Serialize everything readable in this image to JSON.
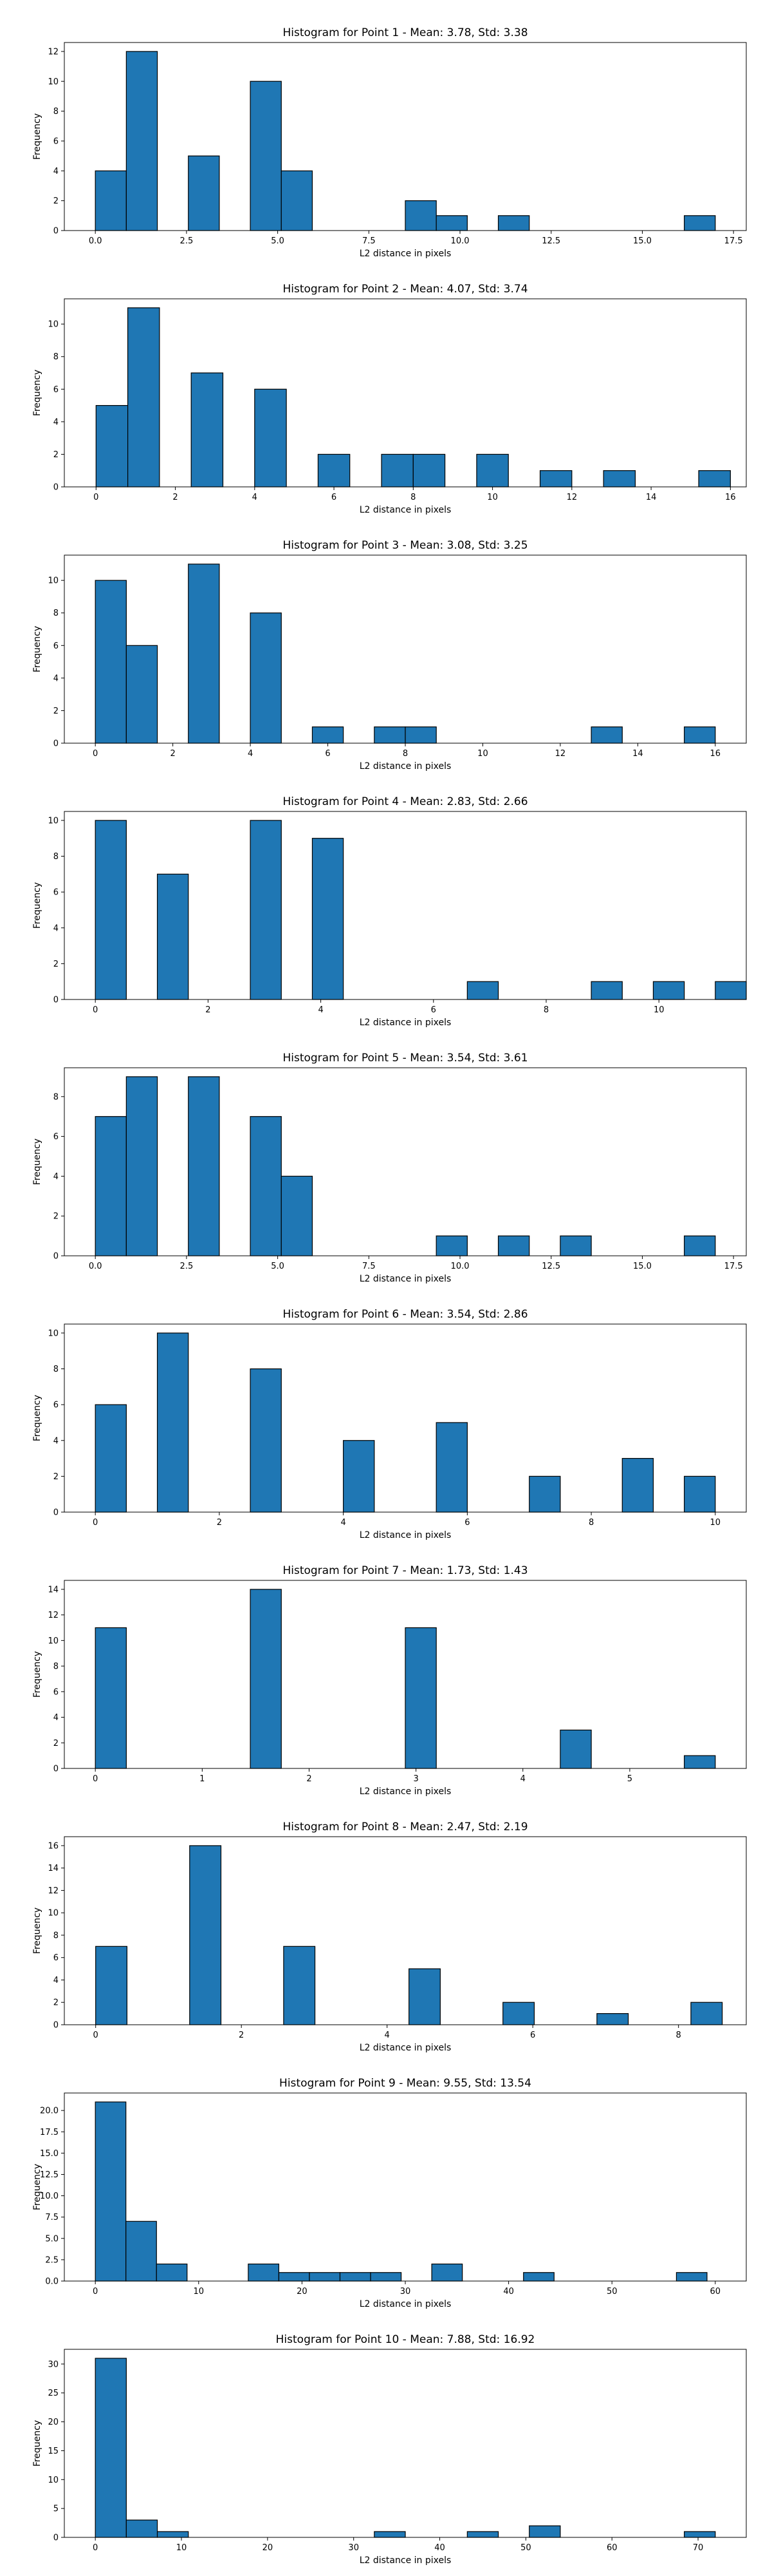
{
  "figure": {
    "background": "#ffffff",
    "bar_color": "#1f77b4",
    "edge_color": "#000000"
  },
  "chart_data": [
    {
      "type": "bar",
      "title": "Histogram for Point 1 - Mean: 3.78, Std: 3.38",
      "xlabel": "L2 distance in pixels",
      "ylabel": "Frequency",
      "xlim": [
        -0.85,
        17.85
      ],
      "ylim": [
        0,
        12.6
      ],
      "xticks": [
        0.0,
        2.5,
        5.0,
        7.5,
        10.0,
        12.5,
        15.0,
        17.5
      ],
      "xtick_labels": [
        "0.0",
        "2.5",
        "5.0",
        "7.5",
        "10.0",
        "12.5",
        "15.0",
        "17.5"
      ],
      "yticks": [
        0,
        2,
        4,
        6,
        8,
        10,
        12
      ],
      "ytick_labels": [
        "0",
        "2",
        "4",
        "6",
        "8",
        "10",
        "12"
      ],
      "bin_width": 0.85,
      "bins": [
        {
          "x": 0.0,
          "count": 4
        },
        {
          "x": 0.85,
          "count": 12
        },
        {
          "x": 2.55,
          "count": 5
        },
        {
          "x": 4.25,
          "count": 10
        },
        {
          "x": 5.1,
          "count": 4
        },
        {
          "x": 8.5,
          "count": 2
        },
        {
          "x": 9.35,
          "count": 1
        },
        {
          "x": 11.05,
          "count": 1
        },
        {
          "x": 16.15,
          "count": 1
        }
      ]
    },
    {
      "type": "bar",
      "title": "Histogram for Point 2 - Mean: 4.07, Std: 3.74",
      "xlabel": "L2 distance in pixels",
      "ylabel": "Frequency",
      "xlim": [
        -0.8,
        16.4
      ],
      "ylim": [
        0,
        11.55
      ],
      "xticks": [
        0,
        2,
        4,
        6,
        8,
        10,
        12,
        14,
        16
      ],
      "xtick_labels": [
        "0",
        "2",
        "4",
        "6",
        "8",
        "10",
        "12",
        "14",
        "16"
      ],
      "yticks": [
        0,
        2,
        4,
        6,
        8,
        10
      ],
      "ytick_labels": [
        "0",
        "2",
        "4",
        "6",
        "8",
        "10"
      ],
      "bin_width": 0.8,
      "bins": [
        {
          "x": 0.0,
          "count": 5
        },
        {
          "x": 0.8,
          "count": 11
        },
        {
          "x": 2.4,
          "count": 7
        },
        {
          "x": 4.0,
          "count": 6
        },
        {
          "x": 5.6,
          "count": 2
        },
        {
          "x": 7.2,
          "count": 2
        },
        {
          "x": 8.0,
          "count": 2
        },
        {
          "x": 9.6,
          "count": 2
        },
        {
          "x": 11.2,
          "count": 1
        },
        {
          "x": 12.8,
          "count": 1
        },
        {
          "x": 15.2,
          "count": 1
        }
      ]
    },
    {
      "type": "bar",
      "title": "Histogram for Point 3 - Mean: 3.08, Std: 3.25",
      "xlabel": "L2 distance in pixels",
      "ylabel": "Frequency",
      "xlim": [
        -0.8,
        16.8
      ],
      "ylim": [
        0,
        11.55
      ],
      "xticks": [
        0,
        2,
        4,
        6,
        8,
        10,
        12,
        14,
        16
      ],
      "xtick_labels": [
        "0",
        "2",
        "4",
        "6",
        "8",
        "10",
        "12",
        "14",
        "16"
      ],
      "yticks": [
        0,
        2,
        4,
        6,
        8,
        10
      ],
      "ytick_labels": [
        "0",
        "2",
        "4",
        "6",
        "8",
        "10"
      ],
      "bin_width": 0.8,
      "bins": [
        {
          "x": 0.0,
          "count": 10
        },
        {
          "x": 0.8,
          "count": 6
        },
        {
          "x": 2.4,
          "count": 11
        },
        {
          "x": 4.0,
          "count": 8
        },
        {
          "x": 5.6,
          "count": 1
        },
        {
          "x": 7.2,
          "count": 1
        },
        {
          "x": 8.0,
          "count": 1
        },
        {
          "x": 12.8,
          "count": 1
        },
        {
          "x": 15.2,
          "count": 1
        }
      ]
    },
    {
      "type": "bar",
      "title": "Histogram for Point 4 - Mean: 2.83, Std: 2.66",
      "xlabel": "L2 distance in pixels",
      "ylabel": "Frequency",
      "xlim": [
        -0.55,
        11.55
      ],
      "ylim": [
        0,
        10.5
      ],
      "xticks": [
        0,
        2,
        4,
        6,
        8,
        10
      ],
      "xtick_labels": [
        "0",
        "2",
        "4",
        "6",
        "8",
        "10"
      ],
      "yticks": [
        0,
        2,
        4,
        6,
        8,
        10
      ],
      "ytick_labels": [
        "0",
        "2",
        "4",
        "6",
        "8",
        "10"
      ],
      "bin_width": 0.55,
      "bins": [
        {
          "x": 0.0,
          "count": 10
        },
        {
          "x": 1.1,
          "count": 7
        },
        {
          "x": 2.75,
          "count": 10
        },
        {
          "x": 3.85,
          "count": 9
        },
        {
          "x": 6.6,
          "count": 1
        },
        {
          "x": 8.8,
          "count": 1
        },
        {
          "x": 9.9,
          "count": 1
        },
        {
          "x": 11.0,
          "count": 1
        }
      ]
    },
    {
      "type": "bar",
      "title": "Histogram for Point 5 - Mean: 3.54, Std: 3.61",
      "xlabel": "L2 distance in pixels",
      "ylabel": "Frequency",
      "xlim": [
        -0.85,
        17.85
      ],
      "ylim": [
        0,
        9.45
      ],
      "xticks": [
        0.0,
        2.5,
        5.0,
        7.5,
        10.0,
        12.5,
        15.0,
        17.5
      ],
      "xtick_labels": [
        "0.0",
        "2.5",
        "5.0",
        "7.5",
        "10.0",
        "12.5",
        "15.0",
        "17.5"
      ],
      "yticks": [
        0,
        2,
        4,
        6,
        8
      ],
      "ytick_labels": [
        "0",
        "2",
        "4",
        "6",
        "8"
      ],
      "bin_width": 0.85,
      "bins": [
        {
          "x": 0.0,
          "count": 7
        },
        {
          "x": 0.85,
          "count": 9
        },
        {
          "x": 2.55,
          "count": 9
        },
        {
          "x": 4.25,
          "count": 7
        },
        {
          "x": 5.1,
          "count": 4
        },
        {
          "x": 9.35,
          "count": 1
        },
        {
          "x": 11.05,
          "count": 1
        },
        {
          "x": 12.75,
          "count": 1
        },
        {
          "x": 16.15,
          "count": 1
        }
      ]
    },
    {
      "type": "bar",
      "title": "Histogram for Point 6 - Mean: 3.54, Std: 2.86",
      "xlabel": "L2 distance in pixels",
      "ylabel": "Frequency",
      "xlim": [
        -0.5,
        10.5
      ],
      "ylim": [
        0,
        10.5
      ],
      "xticks": [
        0,
        2,
        4,
        6,
        8,
        10
      ],
      "xtick_labels": [
        "0",
        "2",
        "4",
        "6",
        "8",
        "10"
      ],
      "yticks": [
        0,
        2,
        4,
        6,
        8,
        10
      ],
      "ytick_labels": [
        "0",
        "2",
        "4",
        "6",
        "8",
        "10"
      ],
      "bin_width": 0.5,
      "bins": [
        {
          "x": 0.0,
          "count": 6
        },
        {
          "x": 1.0,
          "count": 10
        },
        {
          "x": 2.5,
          "count": 8
        },
        {
          "x": 4.0,
          "count": 4
        },
        {
          "x": 5.5,
          "count": 5
        },
        {
          "x": 7.0,
          "count": 2
        },
        {
          "x": 8.5,
          "count": 3
        },
        {
          "x": 9.5,
          "count": 2
        }
      ]
    },
    {
      "type": "bar",
      "title": "Histogram for Point 7 - Mean: 1.73, Std: 1.43",
      "xlabel": "L2 distance in pixels",
      "ylabel": "Frequency",
      "xlim": [
        -0.29,
        6.09
      ],
      "ylim": [
        0,
        14.7
      ],
      "xticks": [
        0,
        1,
        2,
        3,
        4,
        5
      ],
      "xtick_labels": [
        "0",
        "1",
        "2",
        "3",
        "4",
        "5"
      ],
      "yticks": [
        0,
        2,
        4,
        6,
        8,
        10,
        12,
        14
      ],
      "ytick_labels": [
        "0",
        "2",
        "4",
        "6",
        "8",
        "10",
        "12",
        "14"
      ],
      "bin_width": 0.29,
      "bins": [
        {
          "x": 0.0,
          "count": 11
        },
        {
          "x": 1.45,
          "count": 14
        },
        {
          "x": 2.9,
          "count": 11
        },
        {
          "x": 4.35,
          "count": 3
        },
        {
          "x": 5.51,
          "count": 1
        }
      ]
    },
    {
      "type": "bar",
      "title": "Histogram for Point 8 - Mean: 2.47, Std: 2.19",
      "xlabel": "L2 distance in pixels",
      "ylabel": "Frequency",
      "xlim": [
        -0.43,
        8.93
      ],
      "ylim": [
        0,
        16.8
      ],
      "xticks": [
        0,
        2,
        4,
        6,
        8
      ],
      "xtick_labels": [
        "0",
        "2",
        "4",
        "6",
        "8"
      ],
      "yticks": [
        0,
        2,
        4,
        6,
        8,
        10,
        12,
        14,
        16
      ],
      "ytick_labels": [
        "0",
        "2",
        "4",
        "6",
        "8",
        "10",
        "12",
        "14",
        "16"
      ],
      "bin_width": 0.43,
      "bins": [
        {
          "x": 0.0,
          "count": 7
        },
        {
          "x": 1.29,
          "count": 16
        },
        {
          "x": 2.58,
          "count": 7
        },
        {
          "x": 4.3,
          "count": 5
        },
        {
          "x": 5.59,
          "count": 2
        },
        {
          "x": 6.88,
          "count": 1
        },
        {
          "x": 8.17,
          "count": 2
        }
      ]
    },
    {
      "type": "bar",
      "title": "Histogram for Point 9 - Mean: 9.55, Std: 13.54",
      "xlabel": "L2 distance in pixels",
      "ylabel": "Frequency",
      "xlim": [
        -3.0,
        63.0
      ],
      "ylim": [
        0,
        22.05
      ],
      "xticks": [
        0,
        10,
        20,
        30,
        40,
        50,
        60
      ],
      "xtick_labels": [
        "0",
        "10",
        "20",
        "30",
        "40",
        "50",
        "60"
      ],
      "yticks": [
        0,
        2.5,
        5,
        7.5,
        10,
        12.5,
        15,
        17.5,
        20
      ],
      "ytick_labels": [
        "0.0",
        "2.5",
        "5.0",
        "7.5",
        "10.0",
        "12.5",
        "15.0",
        "17.5",
        "20.0"
      ],
      "bin_width": 2.96,
      "bins": [
        {
          "x": 0.0,
          "count": 21
        },
        {
          "x": 2.96,
          "count": 7
        },
        {
          "x": 5.92,
          "count": 2
        },
        {
          "x": 14.8,
          "count": 2
        },
        {
          "x": 17.76,
          "count": 1
        },
        {
          "x": 20.72,
          "count": 1
        },
        {
          "x": 23.68,
          "count": 1
        },
        {
          "x": 26.64,
          "count": 1
        },
        {
          "x": 32.56,
          "count": 2
        },
        {
          "x": 41.44,
          "count": 1
        },
        {
          "x": 56.24,
          "count": 1
        }
      ]
    },
    {
      "type": "bar",
      "title": "Histogram for Point 10 - Mean: 7.88, Std: 16.92",
      "xlabel": "L2 distance in pixels",
      "ylabel": "Frequency",
      "xlim": [
        -3.6,
        75.6
      ],
      "ylim": [
        0,
        32.55
      ],
      "xticks": [
        0,
        10,
        20,
        30,
        40,
        50,
        60,
        70
      ],
      "xtick_labels": [
        "0",
        "10",
        "20",
        "30",
        "40",
        "50",
        "60",
        "70"
      ],
      "yticks": [
        0,
        5,
        10,
        15,
        20,
        25,
        30
      ],
      "ytick_labels": [
        "0",
        "5",
        "10",
        "15",
        "20",
        "25",
        "30"
      ],
      "bin_width": 3.6,
      "bins": [
        {
          "x": 0.0,
          "count": 31
        },
        {
          "x": 3.6,
          "count": 3
        },
        {
          "x": 7.2,
          "count": 1
        },
        {
          "x": 32.4,
          "count": 1
        },
        {
          "x": 43.2,
          "count": 1
        },
        {
          "x": 50.4,
          "count": 2
        },
        {
          "x": 68.4,
          "count": 1
        }
      ]
    }
  ]
}
